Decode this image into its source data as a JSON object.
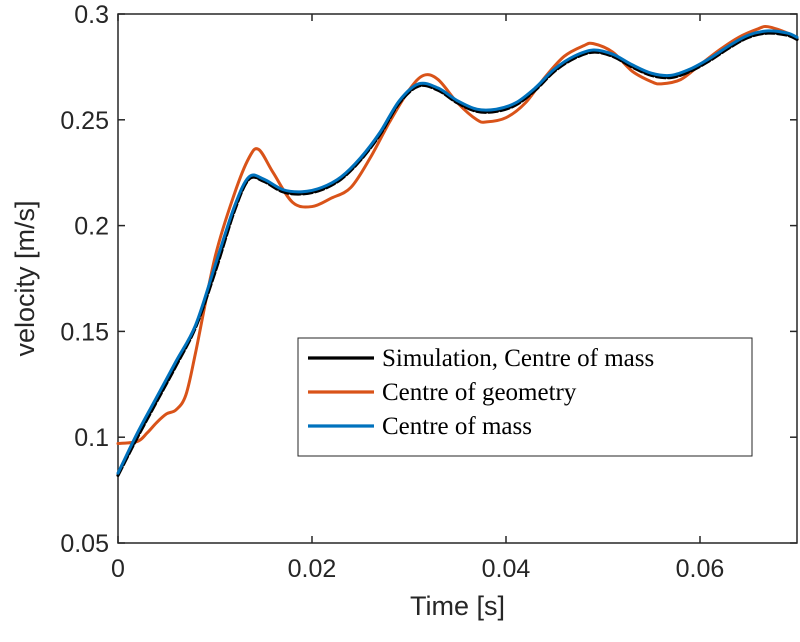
{
  "chart_data": {
    "type": "line",
    "title": "",
    "xlabel": "Time [s]",
    "ylabel": "velocity [m/s]",
    "xlim": [
      0,
      0.07
    ],
    "ylim": [
      0.05,
      0.3
    ],
    "xticks": [
      0,
      0.02,
      0.04,
      0.06
    ],
    "xtick_labels": [
      "0",
      "0.02",
      "0.04",
      "0.06"
    ],
    "yticks": [
      0.05,
      0.1,
      0.15,
      0.2,
      0.25,
      0.3
    ],
    "ytick_labels": [
      "0.05",
      "0.1",
      "0.15",
      "0.2",
      "0.25",
      "0.3"
    ],
    "grid": false,
    "legend_position": "lower-right",
    "series": [
      {
        "name": "Simulation, Centre of mass",
        "color": "#000000",
        "x": [
          0,
          0.002,
          0.004,
          0.006,
          0.008,
          0.01,
          0.012,
          0.0135,
          0.015,
          0.017,
          0.019,
          0.021,
          0.023,
          0.025,
          0.027,
          0.029,
          0.031,
          0.033,
          0.035,
          0.037,
          0.039,
          0.041,
          0.043,
          0.045,
          0.047,
          0.049,
          0.051,
          0.053,
          0.055,
          0.057,
          0.059,
          0.061,
          0.063,
          0.065,
          0.067,
          0.069,
          0.07
        ],
        "y": [
          0.082,
          0.1,
          0.117,
          0.134,
          0.152,
          0.178,
          0.207,
          0.222,
          0.221,
          0.216,
          0.215,
          0.217,
          0.222,
          0.231,
          0.243,
          0.258,
          0.266,
          0.264,
          0.258,
          0.254,
          0.254,
          0.257,
          0.264,
          0.273,
          0.279,
          0.282,
          0.28,
          0.275,
          0.271,
          0.27,
          0.273,
          0.278,
          0.284,
          0.289,
          0.291,
          0.29,
          0.288
        ]
      },
      {
        "name": "Centre of geometry",
        "color": "#d95319",
        "x": [
          0,
          0.002,
          0.003,
          0.004,
          0.005,
          0.006,
          0.007,
          0.008,
          0.01,
          0.012,
          0.0135,
          0.0145,
          0.016,
          0.018,
          0.02,
          0.022,
          0.024,
          0.026,
          0.028,
          0.03,
          0.0315,
          0.033,
          0.035,
          0.037,
          0.038,
          0.04,
          0.042,
          0.044,
          0.046,
          0.048,
          0.049,
          0.051,
          0.053,
          0.055,
          0.056,
          0.058,
          0.06,
          0.062,
          0.064,
          0.066,
          0.067,
          0.069,
          0.07
        ],
        "y": [
          0.097,
          0.098,
          0.102,
          0.107,
          0.111,
          0.113,
          0.12,
          0.14,
          0.185,
          0.215,
          0.232,
          0.236,
          0.225,
          0.211,
          0.209,
          0.213,
          0.218,
          0.232,
          0.249,
          0.264,
          0.271,
          0.269,
          0.258,
          0.25,
          0.249,
          0.251,
          0.258,
          0.27,
          0.28,
          0.285,
          0.286,
          0.282,
          0.273,
          0.268,
          0.267,
          0.269,
          0.276,
          0.283,
          0.289,
          0.293,
          0.294,
          0.291,
          0.288
        ]
      },
      {
        "name": "Centre of mass",
        "color": "#0072bd",
        "x": [
          0,
          0.002,
          0.004,
          0.006,
          0.008,
          0.01,
          0.012,
          0.0135,
          0.015,
          0.017,
          0.019,
          0.021,
          0.023,
          0.025,
          0.027,
          0.029,
          0.031,
          0.033,
          0.035,
          0.037,
          0.039,
          0.041,
          0.043,
          0.045,
          0.047,
          0.049,
          0.051,
          0.053,
          0.055,
          0.057,
          0.059,
          0.061,
          0.063,
          0.065,
          0.067,
          0.069,
          0.07
        ],
        "y": [
          0.083,
          0.102,
          0.119,
          0.136,
          0.153,
          0.181,
          0.209,
          0.223,
          0.222,
          0.217,
          0.216,
          0.218,
          0.223,
          0.232,
          0.244,
          0.259,
          0.267,
          0.265,
          0.259,
          0.255,
          0.255,
          0.258,
          0.265,
          0.274,
          0.28,
          0.283,
          0.281,
          0.276,
          0.272,
          0.271,
          0.274,
          0.279,
          0.285,
          0.29,
          0.292,
          0.291,
          0.289
        ]
      }
    ]
  }
}
